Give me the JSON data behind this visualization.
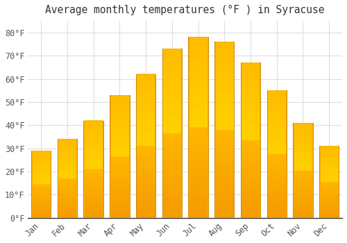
{
  "title": "Average monthly temperatures (°F ) in Syracuse",
  "months": [
    "Jan",
    "Feb",
    "Mar",
    "Apr",
    "May",
    "Jun",
    "Jul",
    "Aug",
    "Sep",
    "Oct",
    "Nov",
    "Dec"
  ],
  "values": [
    29,
    34,
    42,
    53,
    62,
    73,
    78,
    76,
    67,
    55,
    41,
    31
  ],
  "bar_color_main": "#FFAA00",
  "bar_color_light": "#FFD060",
  "bar_edge_color": "#CC8800",
  "background_color": "#FFFFFF",
  "grid_color": "#DDDDDD",
  "text_color": "#555555",
  "ylim": [
    0,
    85
  ],
  "yticks": [
    0,
    10,
    20,
    30,
    40,
    50,
    60,
    70,
    80
  ],
  "title_fontsize": 10.5,
  "tick_fontsize": 8.5,
  "font_family": "monospace"
}
